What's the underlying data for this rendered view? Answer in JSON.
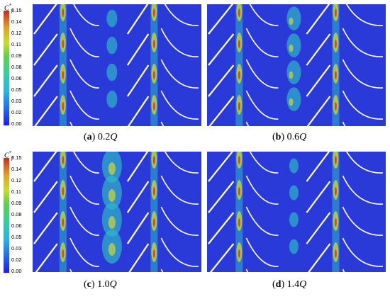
{
  "colorbar": {
    "symbol": "C",
    "superscript": "*",
    "subscript": "f",
    "ticks": [
      "0.15",
      "0.14",
      "0.12",
      "0.11",
      "0.09",
      "0.08",
      "0.06",
      "0.05",
      "0.03",
      "0.02",
      "0.00"
    ]
  },
  "panels": [
    {
      "letter": "a",
      "value": "0.2",
      "unit": "Q"
    },
    {
      "letter": "b",
      "value": "0.6",
      "unit": "Q"
    },
    {
      "letter": "c",
      "value": "1.0",
      "unit": "Q"
    },
    {
      "letter": "d",
      "value": "1.4",
      "unit": "Q"
    }
  ],
  "colors": {
    "background_field": "#2a3ad8",
    "low": "#1c3ff2",
    "mid": "#2fb5c9",
    "high": "#c7d23a",
    "peak": "#c8361e",
    "blade": "#ffffff"
  }
}
